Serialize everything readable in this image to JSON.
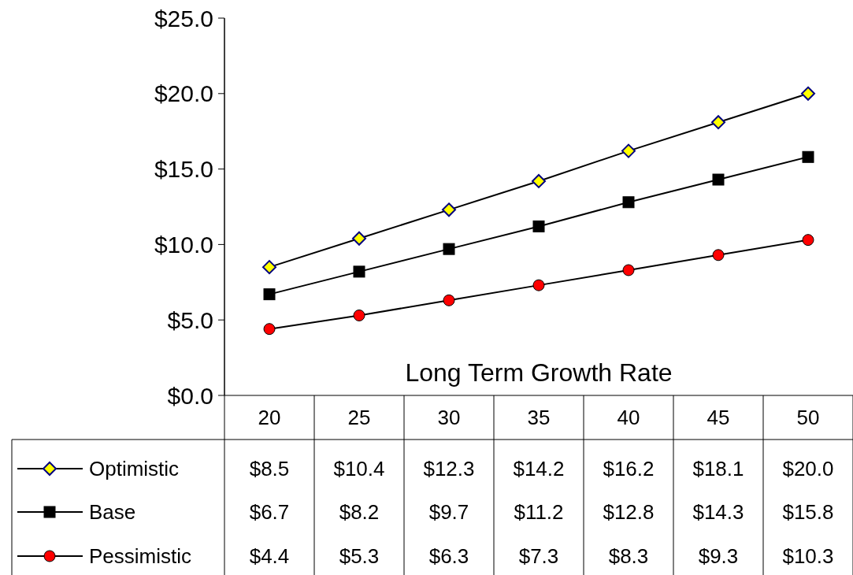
{
  "chart_data": {
    "type": "line",
    "xlabel": "Long Term Growth Rate",
    "categories": [
      "20",
      "25",
      "30",
      "35",
      "40",
      "45",
      "50"
    ],
    "ylim": [
      0,
      25
    ],
    "yticks": [
      {
        "value": 0,
        "label": "$0.0"
      },
      {
        "value": 5,
        "label": "$5.0"
      },
      {
        "value": 10,
        "label": "$10.0"
      },
      {
        "value": 15,
        "label": "$15.0"
      },
      {
        "value": 20,
        "label": "$20.0"
      },
      {
        "value": 25,
        "label": "$25.0"
      }
    ],
    "grid": false,
    "legend": "bottom left",
    "data_labels": true,
    "series": [
      {
        "name": "Optimistic",
        "color": "#ffff00",
        "marker": "diamond",
        "values": [
          8.5,
          10.4,
          12.3,
          14.2,
          16.2,
          18.1,
          20.0
        ],
        "value_labels": [
          "$8.5",
          "$10.4",
          "$12.3",
          "$14.2",
          "$16.2",
          "$18.1",
          "$20.0"
        ]
      },
      {
        "name": "Base",
        "color": "#000000",
        "marker": "square",
        "values": [
          6.7,
          8.2,
          9.7,
          11.2,
          12.8,
          14.3,
          15.8
        ],
        "value_labels": [
          "$6.7",
          "$8.2",
          "$9.7",
          "$11.2",
          "$12.8",
          "$14.3",
          "$15.8"
        ]
      },
      {
        "name": "Pessimistic",
        "color": "#ff0000",
        "marker": "circle",
        "values": [
          4.4,
          5.3,
          6.3,
          7.3,
          8.3,
          9.3,
          10.3
        ],
        "value_labels": [
          "$4.4",
          "$5.3",
          "$6.3",
          "$7.3",
          "$8.3",
          "$9.3",
          "$10.3"
        ]
      }
    ]
  }
}
